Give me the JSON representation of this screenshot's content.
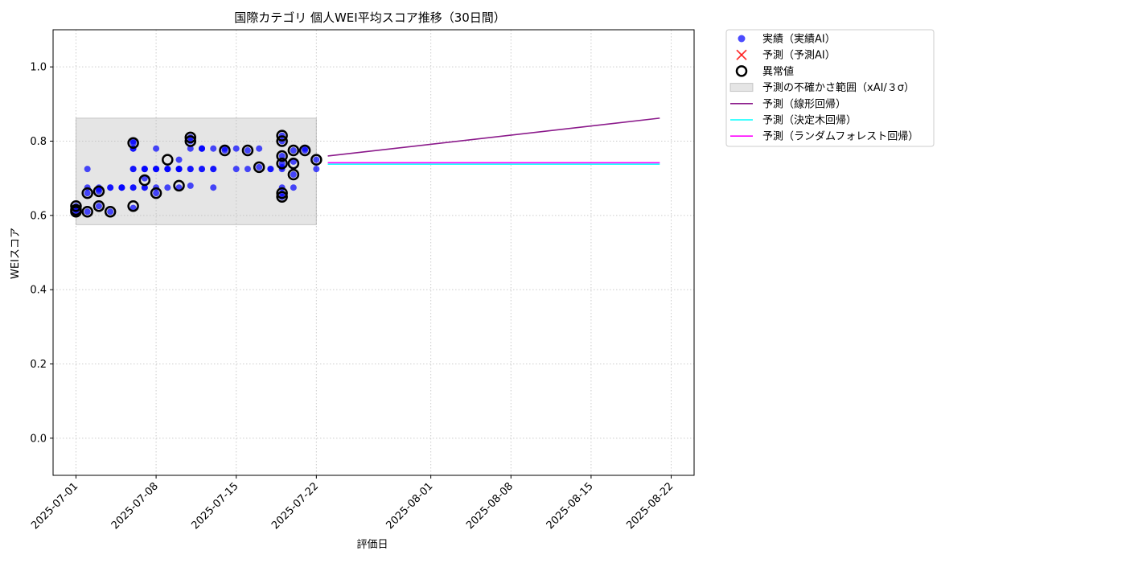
{
  "chart_data": {
    "type": "scatter",
    "title": "国際カテゴリ 個人WEI平均スコア推移（30日間）",
    "xlabel": "評価日",
    "ylabel": "WEIスコア",
    "xlim": [
      "2025-06-29",
      "2025-08-24"
    ],
    "ylim": [
      -0.1,
      1.1
    ],
    "grid": true,
    "legend_position": "outside-top-right",
    "x_ticks": [
      "2025-07-01",
      "2025-07-08",
      "2025-07-15",
      "2025-07-22",
      "2025-08-01",
      "2025-08-08",
      "2025-08-15",
      "2025-08-22"
    ],
    "y_ticks": [
      "0.0",
      "0.2",
      "0.4",
      "0.6",
      "0.8",
      "1.0"
    ],
    "y_tick_values": [
      0.0,
      0.2,
      0.4,
      0.6,
      0.8,
      1.0
    ],
    "legend": [
      {
        "label": "実績（実績AI）",
        "marker": "dot",
        "color": "#0000ff"
      },
      {
        "label": "予測（予測AI）",
        "marker": "x",
        "color": "#ff0000"
      },
      {
        "label": "異常値",
        "marker": "ring",
        "color": "#000000"
      },
      {
        "label": "予測の不確かさ範囲（xAI/３σ）",
        "marker": "band",
        "color": "#bbbbbb"
      },
      {
        "label": "予測（線形回帰）",
        "marker": "line",
        "color": "#8b1a8b"
      },
      {
        "label": "予測（決定木回帰）",
        "marker": "line",
        "color": "#00ffff"
      },
      {
        "label": "予測（ランダムフォレスト回帰）",
        "marker": "line",
        "color": "#ff00ff"
      }
    ],
    "series": [
      {
        "name": "実績（実績AI）",
        "kind": "scatter",
        "color": "#0000ff",
        "points": [
          [
            "2025-07-01",
            0.61
          ],
          [
            "2025-07-01",
            0.625
          ],
          [
            "2025-07-01",
            0.615
          ],
          [
            "2025-07-02",
            0.61
          ],
          [
            "2025-07-02",
            0.725
          ],
          [
            "2025-07-02",
            0.675
          ],
          [
            "2025-07-02",
            0.66
          ],
          [
            "2025-07-03",
            0.67
          ],
          [
            "2025-07-03",
            0.625
          ],
          [
            "2025-07-03",
            0.675
          ],
          [
            "2025-07-03",
            0.665
          ],
          [
            "2025-07-04",
            0.675
          ],
          [
            "2025-07-04",
            0.61
          ],
          [
            "2025-07-04",
            0.675
          ],
          [
            "2025-07-05",
            0.675
          ],
          [
            "2025-07-05",
            0.675
          ],
          [
            "2025-07-05",
            0.675
          ],
          [
            "2025-07-06",
            0.675
          ],
          [
            "2025-07-06",
            0.62
          ],
          [
            "2025-07-06",
            0.675
          ],
          [
            "2025-07-06",
            0.725
          ],
          [
            "2025-07-06",
            0.725
          ],
          [
            "2025-07-06",
            0.78
          ],
          [
            "2025-07-06",
            0.78
          ],
          [
            "2025-07-06",
            0.795
          ],
          [
            "2025-07-06",
            0.8
          ],
          [
            "2025-07-07",
            0.7
          ],
          [
            "2025-07-07",
            0.725
          ],
          [
            "2025-07-07",
            0.675
          ],
          [
            "2025-07-07",
            0.725
          ],
          [
            "2025-07-07",
            0.675
          ],
          [
            "2025-07-07",
            0.725
          ],
          [
            "2025-07-08",
            0.675
          ],
          [
            "2025-07-08",
            0.725
          ],
          [
            "2025-07-08",
            0.78
          ],
          [
            "2025-07-08",
            0.725
          ],
          [
            "2025-07-08",
            0.725
          ],
          [
            "2025-07-08",
            0.66
          ],
          [
            "2025-07-09",
            0.725
          ],
          [
            "2025-07-09",
            0.675
          ],
          [
            "2025-07-09",
            0.725
          ],
          [
            "2025-07-09",
            0.725
          ],
          [
            "2025-07-10",
            0.725
          ],
          [
            "2025-07-10",
            0.75
          ],
          [
            "2025-07-10",
            0.725
          ],
          [
            "2025-07-10",
            0.725
          ],
          [
            "2025-07-10",
            0.725
          ],
          [
            "2025-07-10",
            0.675
          ],
          [
            "2025-07-11",
            0.725
          ],
          [
            "2025-07-11",
            0.725
          ],
          [
            "2025-07-11",
            0.68
          ],
          [
            "2025-07-11",
            0.8
          ],
          [
            "2025-07-11",
            0.81
          ],
          [
            "2025-07-11",
            0.78
          ],
          [
            "2025-07-12",
            0.725
          ],
          [
            "2025-07-12",
            0.78
          ],
          [
            "2025-07-12",
            0.725
          ],
          [
            "2025-07-12",
            0.78
          ],
          [
            "2025-07-12",
            0.78
          ],
          [
            "2025-07-13",
            0.725
          ],
          [
            "2025-07-13",
            0.78
          ],
          [
            "2025-07-13",
            0.675
          ],
          [
            "2025-07-13",
            0.725
          ],
          [
            "2025-07-14",
            0.78
          ],
          [
            "2025-07-14",
            0.775
          ],
          [
            "2025-07-15",
            0.725
          ],
          [
            "2025-07-15",
            0.78
          ],
          [
            "2025-07-16",
            0.725
          ],
          [
            "2025-07-16",
            0.775
          ],
          [
            "2025-07-17",
            0.73
          ],
          [
            "2025-07-17",
            0.78
          ],
          [
            "2025-07-18",
            0.725
          ],
          [
            "2025-07-18",
            0.725
          ],
          [
            "2025-07-19",
            0.65
          ],
          [
            "2025-07-19",
            0.66
          ],
          [
            "2025-07-19",
            0.675
          ],
          [
            "2025-07-19",
            0.725
          ],
          [
            "2025-07-19",
            0.73
          ],
          [
            "2025-07-19",
            0.74
          ],
          [
            "2025-07-19",
            0.76
          ],
          [
            "2025-07-19",
            0.8
          ],
          [
            "2025-07-19",
            0.815
          ],
          [
            "2025-07-20",
            0.745
          ],
          [
            "2025-07-20",
            0.775
          ],
          [
            "2025-07-20",
            0.71
          ],
          [
            "2025-07-20",
            0.675
          ],
          [
            "2025-07-21",
            0.775
          ],
          [
            "2025-07-21",
            0.78
          ],
          [
            "2025-07-22",
            0.75
          ],
          [
            "2025-07-22",
            0.725
          ]
        ]
      },
      {
        "name": "異常値",
        "kind": "ring",
        "color": "#000000",
        "points": [
          [
            "2025-07-01",
            0.61
          ],
          [
            "2025-07-01",
            0.625
          ],
          [
            "2025-07-01",
            0.615
          ],
          [
            "2025-07-02",
            0.61
          ],
          [
            "2025-07-02",
            0.66
          ],
          [
            "2025-07-03",
            0.625
          ],
          [
            "2025-07-03",
            0.665
          ],
          [
            "2025-07-04",
            0.61
          ],
          [
            "2025-07-06",
            0.625
          ],
          [
            "2025-07-06",
            0.795
          ],
          [
            "2025-07-07",
            0.695
          ],
          [
            "2025-07-08",
            0.66
          ],
          [
            "2025-07-09",
            0.75
          ],
          [
            "2025-07-10",
            0.68
          ],
          [
            "2025-07-11",
            0.8
          ],
          [
            "2025-07-11",
            0.81
          ],
          [
            "2025-07-14",
            0.775
          ],
          [
            "2025-07-16",
            0.775
          ],
          [
            "2025-07-17",
            0.73
          ],
          [
            "2025-07-19",
            0.65
          ],
          [
            "2025-07-19",
            0.66
          ],
          [
            "2025-07-19",
            0.74
          ],
          [
            "2025-07-19",
            0.76
          ],
          [
            "2025-07-19",
            0.8
          ],
          [
            "2025-07-19",
            0.815
          ],
          [
            "2025-07-20",
            0.74
          ],
          [
            "2025-07-20",
            0.775
          ],
          [
            "2025-07-20",
            0.71
          ],
          [
            "2025-07-21",
            0.775
          ],
          [
            "2025-07-22",
            0.75
          ]
        ]
      },
      {
        "name": "予測の不確かさ範囲（xAI/３σ）",
        "kind": "band",
        "color": "#bbbbbb",
        "x": [
          "2025-07-01",
          "2025-07-22"
        ],
        "y": [
          0.575,
          0.862
        ]
      },
      {
        "name": "予測（線形回帰）",
        "kind": "line",
        "color": "#8b1a8b",
        "points": [
          [
            "2025-07-23",
            0.76
          ],
          [
            "2025-08-21",
            0.862
          ]
        ]
      },
      {
        "name": "予測（決定木回帰）",
        "kind": "line",
        "color": "#00ffff",
        "points": [
          [
            "2025-07-23",
            0.738
          ],
          [
            "2025-08-21",
            0.738
          ]
        ]
      },
      {
        "name": "予測（ランダムフォレスト回帰）",
        "kind": "line",
        "color": "#ff00ff",
        "points": [
          [
            "2025-07-23",
            0.742
          ],
          [
            "2025-08-21",
            0.742
          ]
        ]
      }
    ]
  }
}
